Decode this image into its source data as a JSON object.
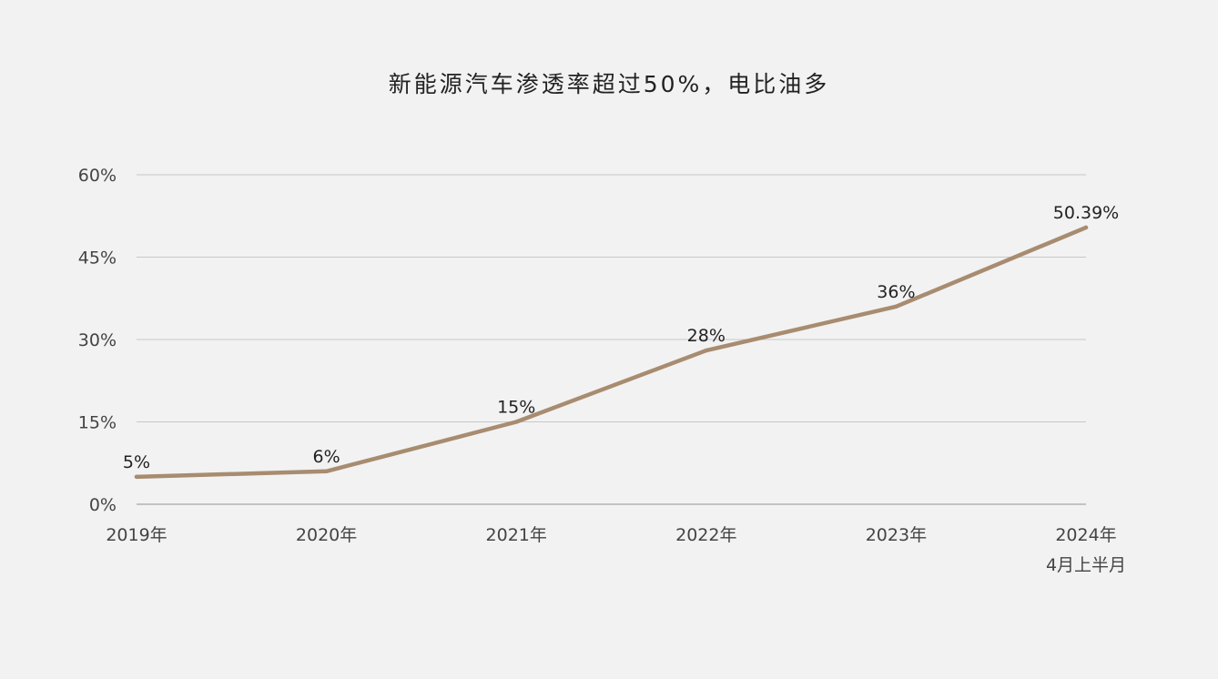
{
  "chart_data": {
    "type": "line",
    "title": "新能源汽车渗透率超过50%，电比油多",
    "categories": [
      [
        "2019年"
      ],
      [
        "2020年"
      ],
      [
        "2021年"
      ],
      [
        "2022年"
      ],
      [
        "2023年"
      ],
      [
        "2024年",
        "4月上半月"
      ]
    ],
    "series": [
      {
        "values": [
          5,
          6,
          15,
          28,
          36,
          50.39
        ],
        "labels": [
          "5%",
          "6%",
          "15%",
          "28%",
          "36%",
          "50.39%"
        ]
      }
    ],
    "yticks": [
      "0%",
      "15%",
      "30%",
      "45%",
      "60%"
    ],
    "ylim": [
      0,
      60
    ],
    "grid": true,
    "legend": "none",
    "colors": {
      "line": "#a88c70",
      "grid": "#c8c8c8",
      "background": "#f2f2f2"
    }
  }
}
